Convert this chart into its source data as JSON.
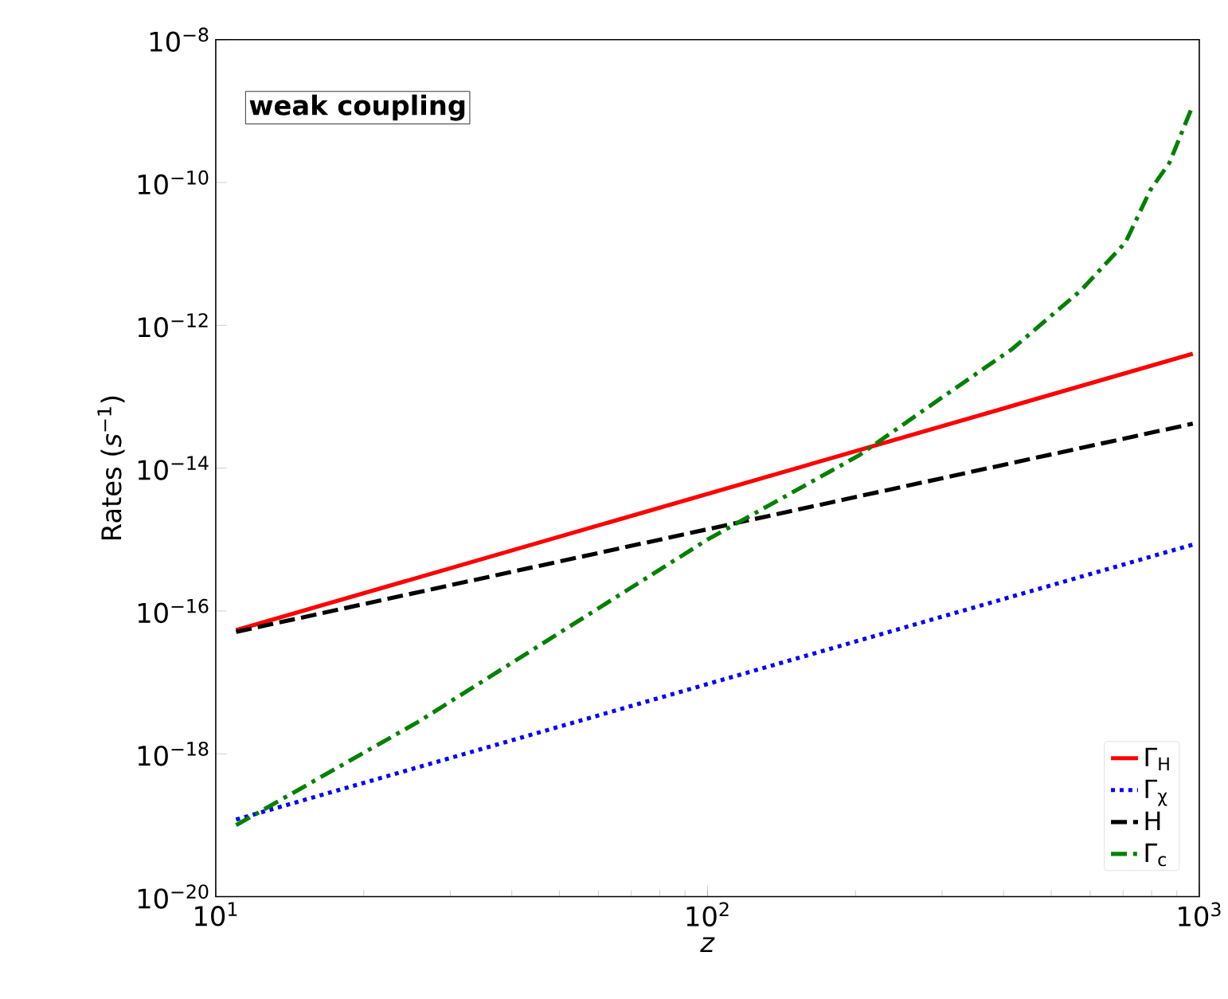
{
  "chart_data": {
    "type": "line",
    "xlabel": "*z*",
    "ylabel": "Rates (*s*$^{−1}$)",
    "log": "xy",
    "xlim": [
      10,
      1000
    ],
    "ylim": [
      1e-20,
      1e-08
    ],
    "xticks": [
      {
        "value": 10,
        "label": "10$^{1}$"
      },
      {
        "value": 100,
        "label": "10$^{2}$"
      },
      {
        "value": 1000,
        "label": "10$^{3}$"
      }
    ],
    "yticks": [
      {
        "value": 1e-20,
        "label": "10$^{−20}$"
      },
      {
        "value": 1e-18,
        "label": "10$^{−18}$"
      },
      {
        "value": 1e-16,
        "label": "10$^{−16}$"
      },
      {
        "value": 1e-14,
        "label": "10$^{−14}$"
      },
      {
        "value": 1e-12,
        "label": "10$^{−12}$"
      },
      {
        "value": 1e-10,
        "label": "10$^{−10}$"
      },
      {
        "value": 1e-08,
        "label": "10$^{−8}$"
      }
    ],
    "legend": "bottom right",
    "grid": false,
    "annotations": [
      "weak coupling"
    ],
    "series": [
      {
        "name": "Γ$_{H}$",
        "color": "#ff0000",
        "line_style": "solid",
        "x": [
          11,
          970
        ],
        "values": [
          5.4e-17,
          4e-13
        ]
      },
      {
        "name": "Γ$_{χ}$",
        "color": "#0000ff",
        "line_style": "dotted",
        "x": [
          11,
          970
        ],
        "values": [
          1.2e-19,
          8.5e-16
        ]
      },
      {
        "name": "H",
        "color": "#000000",
        "line_style": "dashed",
        "x": [
          11,
          970
        ],
        "values": [
          5.1e-17,
          4.2e-14
        ]
      },
      {
        "name": "Γ$_{c}$",
        "color": "#008000",
        "line_style": "dashdot",
        "x": [
          11,
          25.8,
          100,
          203,
          300,
          417,
          575,
          708,
          795,
          870,
          970
        ],
        "values": [
          1e-19,
          2.8e-18,
          1e-15,
          1.5e-14,
          9.8e-14,
          4.7e-13,
          3.1e-12,
          1.45e-11,
          7.8e-11,
          1.9e-10,
          1.2e-09
        ]
      }
    ]
  }
}
